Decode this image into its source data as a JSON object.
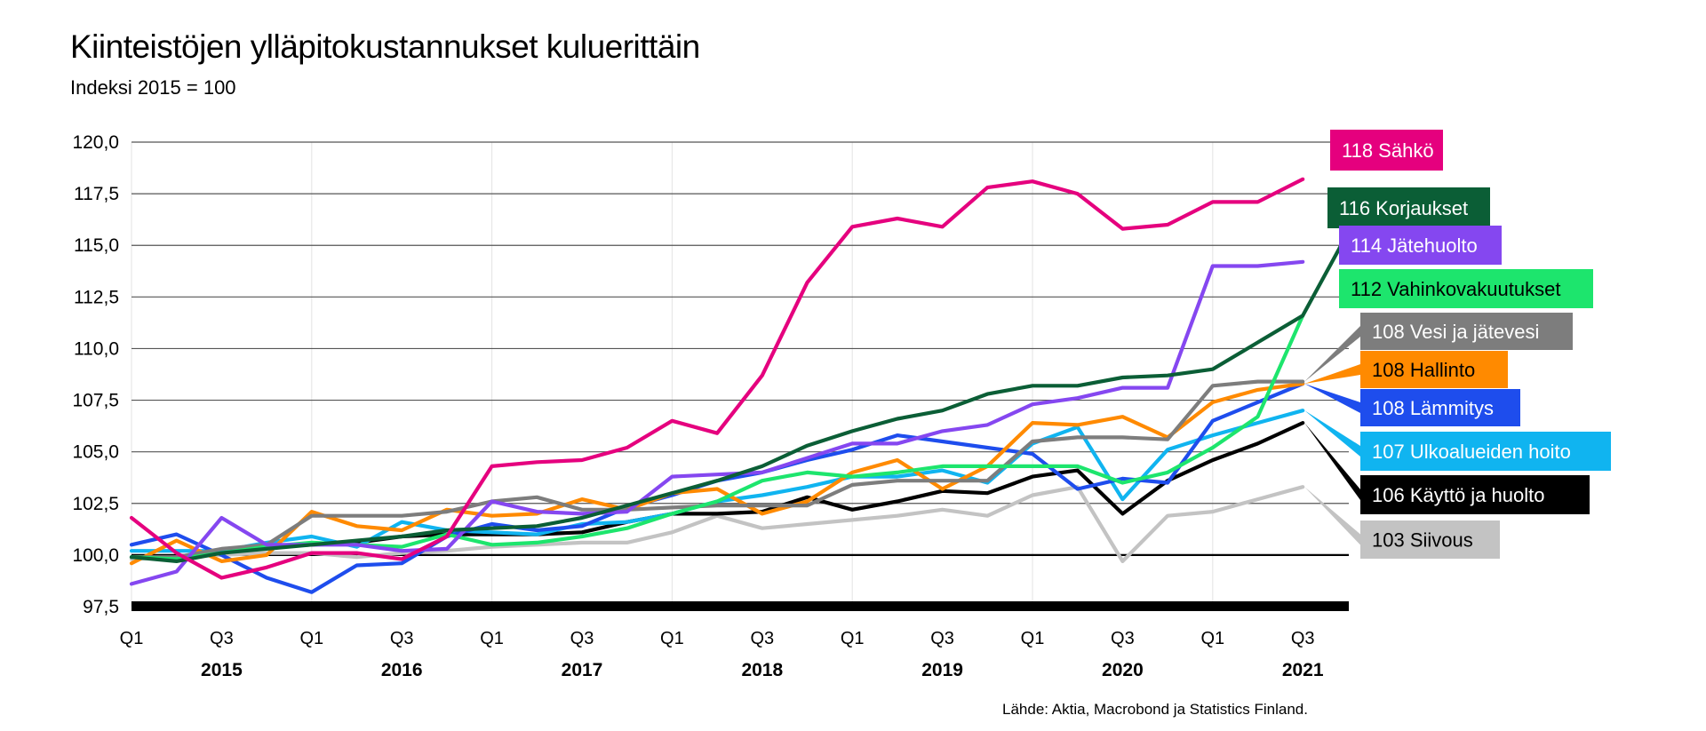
{
  "title": "Kiinteistöjen ylläpitokustannukset kuluerittäin",
  "subtitle": "Indeksi 2015 = 100",
  "source": "Lähde: Aktia, Macrobond ja Statistics Finland.",
  "chart_data": {
    "type": "line",
    "ylim": [
      97.5,
      120.0
    ],
    "yticks": [
      "97,5",
      "100,0",
      "102,5",
      "105,0",
      "107,5",
      "110,0",
      "112,5",
      "115,0",
      "117,5",
      "120,0"
    ],
    "x_quarter_labels": [
      {
        "q": 0,
        "label": "Q1"
      },
      {
        "q": 2,
        "label": "Q3"
      },
      {
        "q": 4,
        "label": "Q1"
      },
      {
        "q": 6,
        "label": "Q3"
      },
      {
        "q": 8,
        "label": "Q1"
      },
      {
        "q": 10,
        "label": "Q3"
      },
      {
        "q": 12,
        "label": "Q1"
      },
      {
        "q": 14,
        "label": "Q3"
      },
      {
        "q": 16,
        "label": "Q1"
      },
      {
        "q": 18,
        "label": "Q3"
      },
      {
        "q": 20,
        "label": "Q1"
      },
      {
        "q": 22,
        "label": "Q3"
      },
      {
        "q": 24,
        "label": "Q1"
      },
      {
        "q": 26,
        "label": "Q3"
      }
    ],
    "x_year_labels": [
      {
        "q": 2,
        "label": "2015"
      },
      {
        "q": 6,
        "label": "2016"
      },
      {
        "q": 10,
        "label": "2017"
      },
      {
        "q": 14,
        "label": "2018"
      },
      {
        "q": 18,
        "label": "2019"
      },
      {
        "q": 22,
        "label": "2020"
      },
      {
        "q": 26,
        "label": "2021"
      }
    ],
    "x_range_quarters": [
      0,
      27.4
    ],
    "grid": "horizontal major + faint vertical at Q1",
    "baseline": 100.0,
    "series": [
      {
        "name": "Sähkö",
        "label": "118 Sähkö",
        "color": "#e5007e",
        "label_bg": "#e5007e",
        "label_fg": "#ffffff",
        "values": [
          101.8,
          100.1,
          98.9,
          99.4,
          100.1,
          100.1,
          99.8,
          100.9,
          104.3,
          104.5,
          104.6,
          105.2,
          106.5,
          105.9,
          108.7,
          113.2,
          115.9,
          116.3,
          115.9,
          117.8,
          118.1,
          117.5,
          115.8,
          116.0,
          117.1,
          117.1,
          118.2
        ]
      },
      {
        "name": "Korjaukset",
        "label": "116 Korjaukset",
        "color": "#0b5e36",
        "label_bg": "#0b5e36",
        "label_fg": "#ffffff",
        "values": [
          99.9,
          99.7,
          100.1,
          100.3,
          100.5,
          100.7,
          100.9,
          101.2,
          101.3,
          101.4,
          101.8,
          102.4,
          103.0,
          103.6,
          104.3,
          105.3,
          106.0,
          106.6,
          107.0,
          107.8,
          108.2,
          108.2,
          108.6,
          108.7,
          109.0,
          110.3,
          111.6,
          115.6
        ]
      },
      {
        "name": "Jätehuolto",
        "label": "114 Jätehuolto",
        "color": "#8547f0",
        "label_bg": "#8547f0",
        "label_fg": "#ffffff",
        "values": [
          98.6,
          99.2,
          101.8,
          100.5,
          100.5,
          100.5,
          100.2,
          100.3,
          102.6,
          102.1,
          102.0,
          102.1,
          103.8,
          103.9,
          104.0,
          104.7,
          105.4,
          105.4,
          106.0,
          106.3,
          107.3,
          107.6,
          108.1,
          108.1,
          114.0,
          114.0,
          114.2
        ]
      },
      {
        "name": "Vahinkovakuutukset",
        "label": "112 Vahinkovakuutukset",
        "color": "#1de56d",
        "label_bg": "#1de56d",
        "label_fg": "#000000",
        "values": [
          99.9,
          99.8,
          100.1,
          100.4,
          100.6,
          100.5,
          100.4,
          101.0,
          100.5,
          100.6,
          100.9,
          101.3,
          102.0,
          102.6,
          103.6,
          104.0,
          103.8,
          104.0,
          104.3,
          104.3,
          104.3,
          104.3,
          103.5,
          104.0,
          105.2,
          106.7,
          111.6
        ]
      },
      {
        "name": "Vesi ja jätevesi",
        "label": "108 Vesi ja jätevesi",
        "color": "#7d7d7d",
        "label_bg": "#7d7d7d",
        "label_fg": "#ffffff",
        "values": [
          99.9,
          99.9,
          100.3,
          100.5,
          101.9,
          101.9,
          101.9,
          102.1,
          102.6,
          102.8,
          102.2,
          102.2,
          102.3,
          102.4,
          102.4,
          102.4,
          103.4,
          103.6,
          103.6,
          103.6,
          105.5,
          105.7,
          105.7,
          105.6,
          108.2,
          108.4,
          108.4
        ]
      },
      {
        "name": "Hallinto",
        "label": "108 Hallinto",
        "color": "#ff8a00",
        "label_bg": "#ff8a00",
        "label_fg": "#000000",
        "values": [
          99.6,
          100.7,
          99.7,
          100.0,
          102.1,
          101.4,
          101.2,
          102.2,
          101.9,
          102.0,
          102.7,
          102.2,
          103.0,
          103.2,
          102.0,
          102.6,
          104.0,
          104.6,
          103.2,
          104.3,
          106.4,
          106.3,
          106.7,
          105.7,
          107.4,
          108.0,
          108.3
        ]
      },
      {
        "name": "Lämmitys",
        "label": "108 Lämmitys",
        "color": "#1e4ded",
        "label_bg": "#1e4ded",
        "label_fg": "#ffffff",
        "values": [
          100.5,
          101.0,
          100.0,
          98.9,
          98.2,
          99.5,
          99.6,
          100.9,
          101.5,
          101.2,
          101.4,
          102.3,
          102.9,
          103.6,
          104.0,
          104.6,
          105.1,
          105.8,
          105.5,
          105.2,
          104.9,
          103.2,
          103.7,
          103.5,
          106.5,
          107.4,
          108.3
        ]
      },
      {
        "name": "Ulkoalueiden hoito",
        "label": "107 Ulkoalueiden hoito",
        "color": "#10b4f0",
        "label_bg": "#10b4f0",
        "label_fg": "#ffffff",
        "values": [
          100.2,
          100.2,
          100.2,
          100.6,
          100.9,
          100.4,
          101.6,
          101.2,
          101.1,
          101.0,
          101.5,
          101.6,
          102.0,
          102.6,
          102.9,
          103.3,
          103.8,
          103.8,
          104.1,
          103.5,
          105.4,
          106.2,
          102.7,
          105.1,
          105.8,
          106.4,
          107.0
        ]
      },
      {
        "name": "Käyttö ja huolto",
        "label": "106 Käyttö ja huolto",
        "color": "#000000",
        "label_bg": "#000000",
        "label_fg": "#ffffff",
        "values": [
          99.9,
          99.9,
          100.2,
          100.4,
          100.5,
          100.6,
          100.9,
          101.0,
          101.0,
          101.0,
          101.1,
          101.6,
          102.0,
          102.0,
          102.1,
          102.8,
          102.2,
          102.6,
          103.1,
          103.0,
          103.8,
          104.1,
          102.0,
          103.6,
          104.6,
          105.4,
          106.4
        ]
      },
      {
        "name": "Siivous",
        "label": "103 Siivous",
        "color": "#c3c3c3",
        "label_bg": "#c3c3c3",
        "label_fg": "#000000",
        "values": [
          99.8,
          99.9,
          100.0,
          100.1,
          100.1,
          99.9,
          100.1,
          100.2,
          100.4,
          100.5,
          100.6,
          100.6,
          101.1,
          101.9,
          101.3,
          101.5,
          101.7,
          101.9,
          102.2,
          101.9,
          102.9,
          103.3,
          99.7,
          101.9,
          102.1,
          102.7,
          103.3
        ]
      }
    ]
  }
}
